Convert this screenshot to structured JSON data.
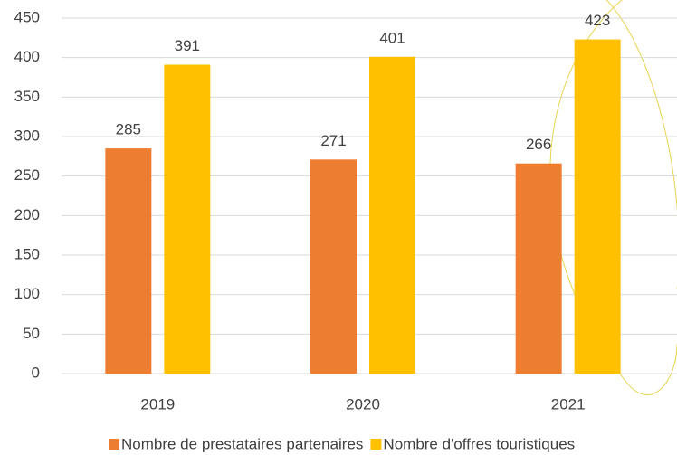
{
  "chart_data": {
    "type": "bar",
    "categories": [
      "2019",
      "2020",
      "2021"
    ],
    "series": [
      {
        "name": "Nombre de prestataires partenaires",
        "color": "#ED7D31",
        "values": [
          285,
          271,
          266
        ]
      },
      {
        "name": "Nombre d'offres touristiques",
        "color": "#FFC000",
        "values": [
          391,
          401,
          423
        ]
      }
    ],
    "ylim": [
      0,
      450
    ],
    "yticks": [
      0,
      50,
      100,
      150,
      200,
      250,
      300,
      350,
      400,
      450
    ],
    "grid": true,
    "legend": "bottom",
    "data_labels": true
  }
}
